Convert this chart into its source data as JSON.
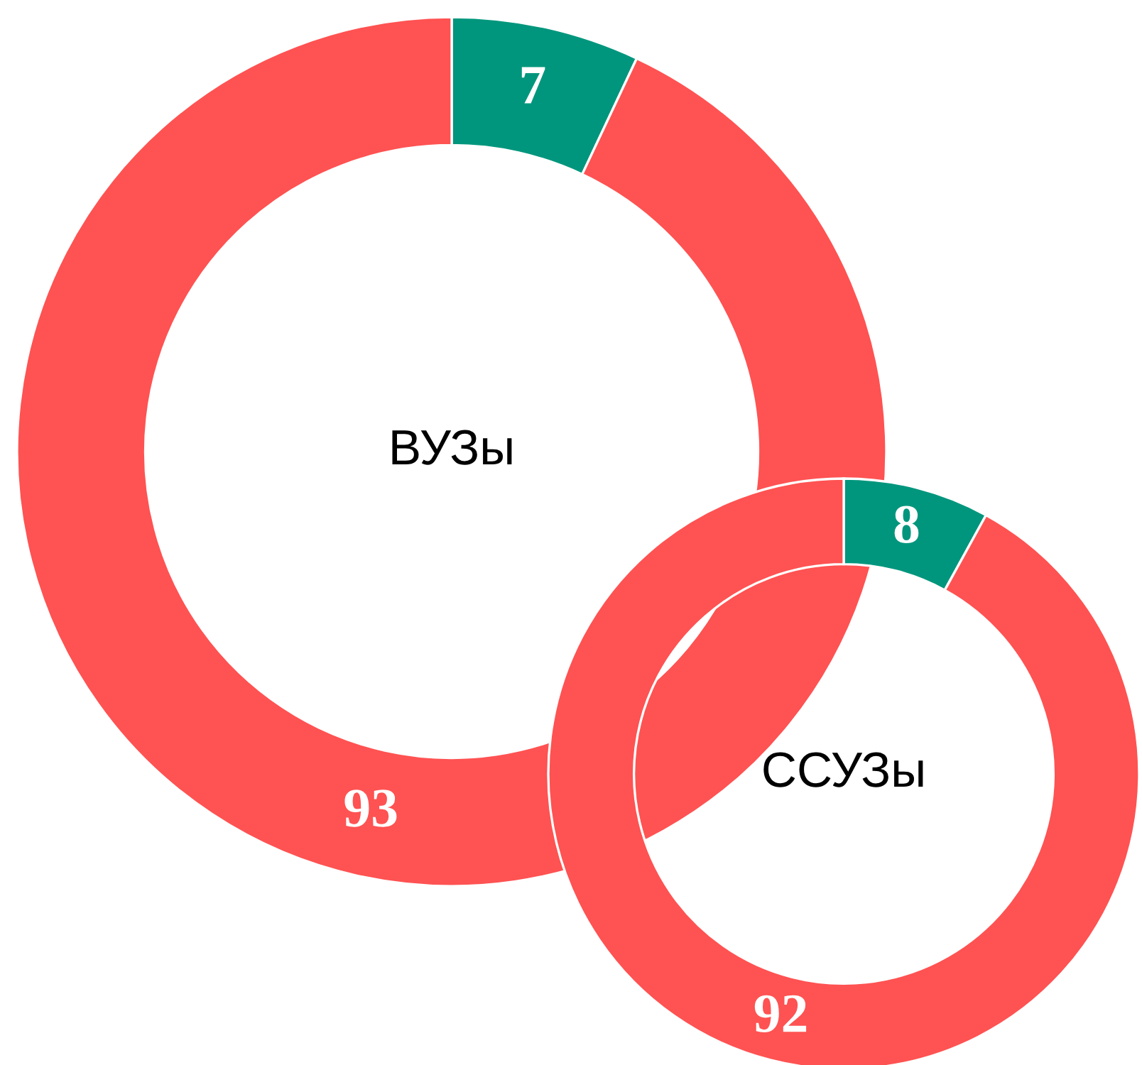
{
  "chart_data": [
    {
      "type": "donut",
      "title": "ВУЗы",
      "categories": [
        null,
        null
      ],
      "values": [
        7,
        93
      ],
      "colors": [
        "#00967d",
        "#ff5252"
      ],
      "data_labels": true
    },
    {
      "type": "donut",
      "title": "ССУЗы",
      "categories": [
        null,
        null
      ],
      "values": [
        8,
        92
      ],
      "colors": [
        "#00967d",
        "#ff5252"
      ],
      "data_labels": true
    }
  ]
}
